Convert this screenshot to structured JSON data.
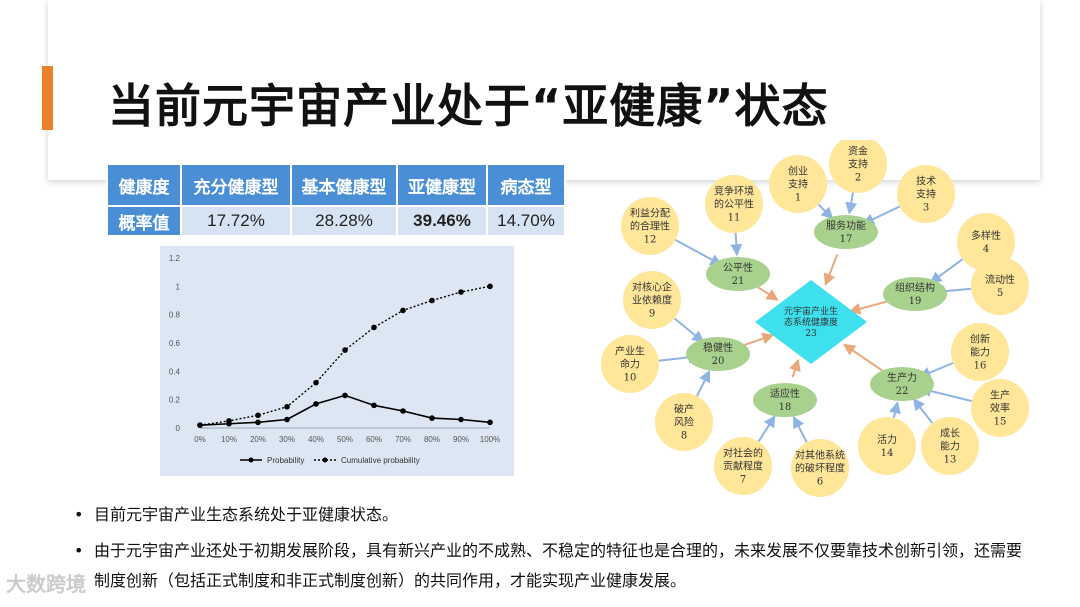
{
  "slide": {
    "title": "当前元宇宙产业处于“亚健康”状态",
    "accent_color": "#e8822a"
  },
  "table": {
    "headers": [
      "健康度",
      "充分健康型",
      "基本健康型",
      "亚健康型",
      "病态型"
    ],
    "row_label": "概率值",
    "values": [
      "17.72%",
      "28.28%",
      "39.46%",
      "14.70%"
    ],
    "header_color": "#4a8fd6"
  },
  "chart_data": {
    "type": "line",
    "categories": [
      "0%",
      "10%",
      "20%",
      "30%",
      "40%",
      "50%",
      "60%",
      "70%",
      "80%",
      "90%",
      "100%"
    ],
    "y_ticks": [
      "0",
      "0.2",
      "0.4",
      "0.6",
      "0.8",
      "1",
      "1.2"
    ],
    "ylim": [
      0,
      1.2
    ],
    "series": [
      {
        "name": "Probability",
        "style": "solid",
        "values": [
          0.02,
          0.03,
          0.04,
          0.06,
          0.17,
          0.23,
          0.16,
          0.12,
          0.07,
          0.06,
          0.04
        ]
      },
      {
        "name": "Cumulative probability",
        "style": "dotted",
        "values": [
          0.02,
          0.05,
          0.09,
          0.15,
          0.32,
          0.55,
          0.71,
          0.83,
          0.9,
          0.96,
          1.0
        ]
      }
    ],
    "legend_position": "bottom",
    "background": "#dde7f3"
  },
  "network": {
    "center": {
      "label": "元宇宙产业生态系统健康度",
      "number": "23",
      "color": "#3fe0ee"
    },
    "hubs": [
      {
        "id": "h17",
        "label": "服务功能",
        "number": "17"
      },
      {
        "id": "h19",
        "label": "组织结构",
        "number": "19"
      },
      {
        "id": "h21",
        "label": "公平性",
        "number": "21"
      },
      {
        "id": "h20",
        "label": "稳健性",
        "number": "20"
      },
      {
        "id": "h18",
        "label": "适应性",
        "number": "18"
      },
      {
        "id": "h22",
        "label": "生产力",
        "number": "22"
      }
    ],
    "leaves": [
      {
        "id": "l1",
        "label": "创业支持",
        "number": "1"
      },
      {
        "id": "l2",
        "label": "资金支持",
        "number": "2"
      },
      {
        "id": "l3",
        "label": "技术支持",
        "number": "3"
      },
      {
        "id": "l4",
        "label": "多样性",
        "number": "4"
      },
      {
        "id": "l5",
        "label": "流动性",
        "number": "5"
      },
      {
        "id": "l11",
        "label": "竞争环境的公平性",
        "number": "11"
      },
      {
        "id": "l12",
        "label": "利益分配的合理性",
        "number": "12"
      },
      {
        "id": "l9",
        "label": "对核心企业依赖度",
        "number": "9"
      },
      {
        "id": "l10",
        "label": "产业生命力",
        "number": "10"
      },
      {
        "id": "l8",
        "label": "破产风险",
        "number": "8"
      },
      {
        "id": "l7",
        "label": "对社会的贡献程度",
        "number": "7"
      },
      {
        "id": "l6",
        "label": "对其他系统的破坏程度",
        "number": "6"
      },
      {
        "id": "l16",
        "label": "创新能力",
        "number": "16"
      },
      {
        "id": "l15",
        "label": "生产效率",
        "number": "15"
      },
      {
        "id": "l13",
        "label": "成长能力",
        "number": "13"
      },
      {
        "id": "l14",
        "label": "活力",
        "number": "14"
      }
    ],
    "hub_color": "#a9d18e",
    "leaf_color": "#ffe699",
    "edge_color": "#8eb4e3"
  },
  "bullets": [
    "目前元宇宙产业生态系统处于亚健康状态。",
    "由于元宇宙产业还处于初期发展阶段，具有新兴产业的不成熟、不稳定的特征也是合理的，未来发展不仅要靠技术创新引领，还需要制度创新（包括正式制度和非正式制度创新）的共同作用，才能实现产业健康发展。"
  ],
  "watermark": "大数跨境"
}
